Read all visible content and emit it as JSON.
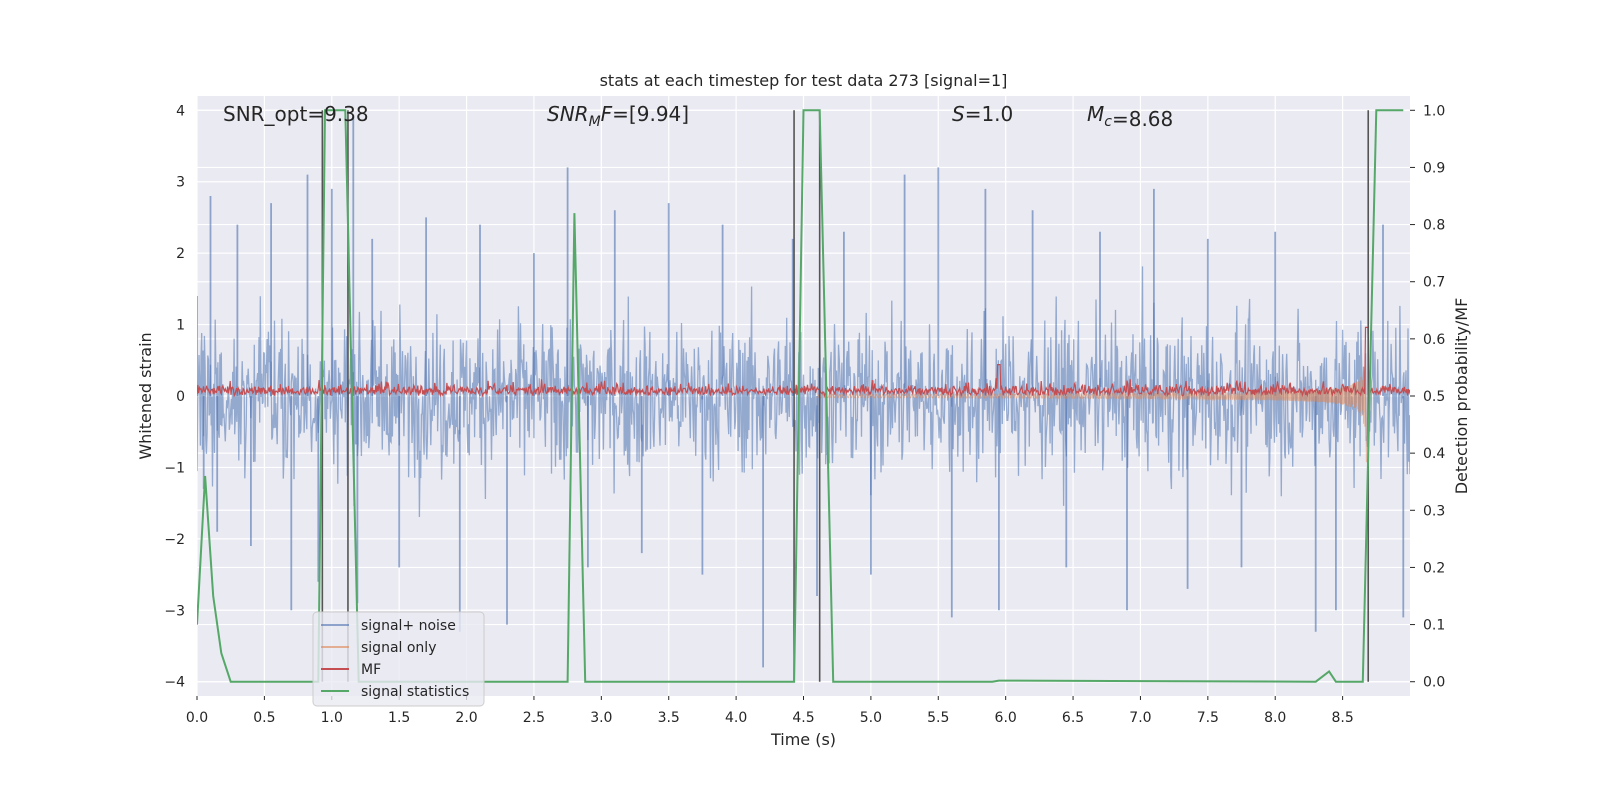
{
  "chart_data": {
    "type": "line",
    "title": "stats at each timestep for test data 273 [signal=1]",
    "xlabel": "Time (s)",
    "ylabel": "Whitened strain",
    "y2label": "Detection probability/MF",
    "xlim": [
      0.0,
      9.0
    ],
    "ylim": [
      -4.2,
      4.2
    ],
    "y2lim": [
      -0.025,
      1.025
    ],
    "xticks": [
      0.0,
      0.5,
      1.0,
      1.5,
      2.0,
      2.5,
      3.0,
      3.5,
      4.0,
      4.5,
      5.0,
      5.5,
      6.0,
      6.5,
      7.0,
      7.5,
      8.0,
      8.5
    ],
    "xtick_labels": [
      "0.0",
      "0.5",
      "1.0",
      "1.5",
      "2.0",
      "2.5",
      "3.0",
      "3.5",
      "4.0",
      "4.5",
      "5.0",
      "5.5",
      "6.0",
      "6.5",
      "7.0",
      "7.5",
      "8.0",
      "8.5"
    ],
    "yticks": [
      -4,
      -3,
      -2,
      -1,
      0,
      1,
      2,
      3,
      4
    ],
    "ytick_labels": [
      "−4",
      "−3",
      "−2",
      "−1",
      "0",
      "1",
      "2",
      "3",
      "4"
    ],
    "y2ticks": [
      0.0,
      0.1,
      0.2,
      0.3,
      0.4,
      0.5,
      0.6,
      0.7,
      0.8,
      0.9,
      1.0
    ],
    "y2tick_labels": [
      "0.0",
      "0.1",
      "0.2",
      "0.3",
      "0.4",
      "0.5",
      "0.6",
      "0.7",
      "0.8",
      "0.9",
      "1.0"
    ],
    "grid": true,
    "legend_position": "lower-left",
    "annotations": [
      {
        "prefix": "SNR_opt=9.38",
        "italic": "",
        "sub": "",
        "suffix": ""
      },
      {
        "prefix": "",
        "italic": "SNR",
        "sub": "M",
        "italic2": "F",
        "suffix": "=[9.94]"
      },
      {
        "prefix": "",
        "italic": "S",
        "sub": "",
        "suffix": "=1.0"
      },
      {
        "prefix": "",
        "italic": "M",
        "sub": "c",
        "suffix": "=8.68"
      }
    ],
    "detection_markers_x": [
      0.93,
      1.12,
      4.43,
      4.62,
      8.69
    ],
    "series": [
      {
        "name": "signal+ noise",
        "color": "#4c72b0",
        "axis": "left",
        "description_values": "noise band roughly between -1.5 and 1.6 with spikes up to about 3 and down to about -3.8",
        "samples": [
          [
            0.0,
            1.4
          ],
          [
            0.05,
            -1.3
          ],
          [
            0.1,
            2.8
          ],
          [
            0.15,
            -1.9
          ],
          [
            0.3,
            2.4
          ],
          [
            0.4,
            -2.1
          ],
          [
            0.55,
            2.7
          ],
          [
            0.7,
            -3.0
          ],
          [
            0.82,
            3.1
          ],
          [
            0.9,
            -2.6
          ],
          [
            1.0,
            2.9
          ],
          [
            1.16,
            3.9
          ],
          [
            1.19,
            -2.9
          ],
          [
            1.3,
            2.2
          ],
          [
            1.5,
            -2.4
          ],
          [
            1.7,
            2.5
          ],
          [
            1.95,
            -3.3
          ],
          [
            2.1,
            2.4
          ],
          [
            2.3,
            -3.2
          ],
          [
            2.5,
            2.0
          ],
          [
            2.75,
            3.2
          ],
          [
            2.9,
            -2.4
          ],
          [
            3.1,
            2.6
          ],
          [
            3.3,
            -2.2
          ],
          [
            3.5,
            2.7
          ],
          [
            3.75,
            -2.5
          ],
          [
            3.9,
            2.4
          ],
          [
            4.2,
            -3.8
          ],
          [
            4.42,
            2.2
          ],
          [
            4.6,
            -2.8
          ],
          [
            4.8,
            2.3
          ],
          [
            5.0,
            -2.5
          ],
          [
            5.25,
            3.1
          ],
          [
            5.5,
            3.2
          ],
          [
            5.6,
            -3.1
          ],
          [
            5.85,
            2.9
          ],
          [
            5.95,
            -3.0
          ],
          [
            6.2,
            2.6
          ],
          [
            6.45,
            -2.4
          ],
          [
            6.7,
            2.3
          ],
          [
            6.9,
            -3.0
          ],
          [
            7.1,
            2.9
          ],
          [
            7.35,
            -2.7
          ],
          [
            7.5,
            2.2
          ],
          [
            7.75,
            -2.4
          ],
          [
            8.0,
            2.3
          ],
          [
            8.3,
            -3.3
          ],
          [
            8.45,
            -3.0
          ],
          [
            8.8,
            2.4
          ],
          [
            8.95,
            -3.1
          ]
        ]
      },
      {
        "name": "signal only",
        "color": "#dd8452",
        "axis": "left",
        "chirp_start": 4.6,
        "chirp_peak": 8.68,
        "peak_amplitude": 1.5
      },
      {
        "name": "MF",
        "color": "#c44e52",
        "axis": "right",
        "baseline": 0.5,
        "range": [
          0.495,
          0.54
        ],
        "spikes": [
          [
            5.95,
            0.555
          ],
          [
            8.68,
            0.62
          ]
        ]
      },
      {
        "name": "signal statistics",
        "color": "#55a868",
        "axis": "right",
        "points": [
          [
            0.0,
            0.1
          ],
          [
            0.06,
            0.36
          ],
          [
            0.12,
            0.15
          ],
          [
            0.18,
            0.05
          ],
          [
            0.25,
            0.0
          ],
          [
            0.9,
            0.0
          ],
          [
            0.95,
            1.0
          ],
          [
            1.1,
            1.0
          ],
          [
            1.2,
            0.0
          ],
          [
            2.75,
            0.0
          ],
          [
            2.8,
            0.82
          ],
          [
            2.88,
            0.0
          ],
          [
            4.43,
            0.0
          ],
          [
            4.5,
            1.0
          ],
          [
            4.62,
            1.0
          ],
          [
            4.72,
            0.0
          ],
          [
            5.9,
            0.0
          ],
          [
            5.95,
            0.002
          ],
          [
            8.3,
            0.0
          ],
          [
            8.4,
            0.018
          ],
          [
            8.45,
            0.0
          ],
          [
            8.65,
            0.0
          ],
          [
            8.75,
            1.0
          ],
          [
            8.95,
            1.0
          ]
        ]
      }
    ]
  }
}
